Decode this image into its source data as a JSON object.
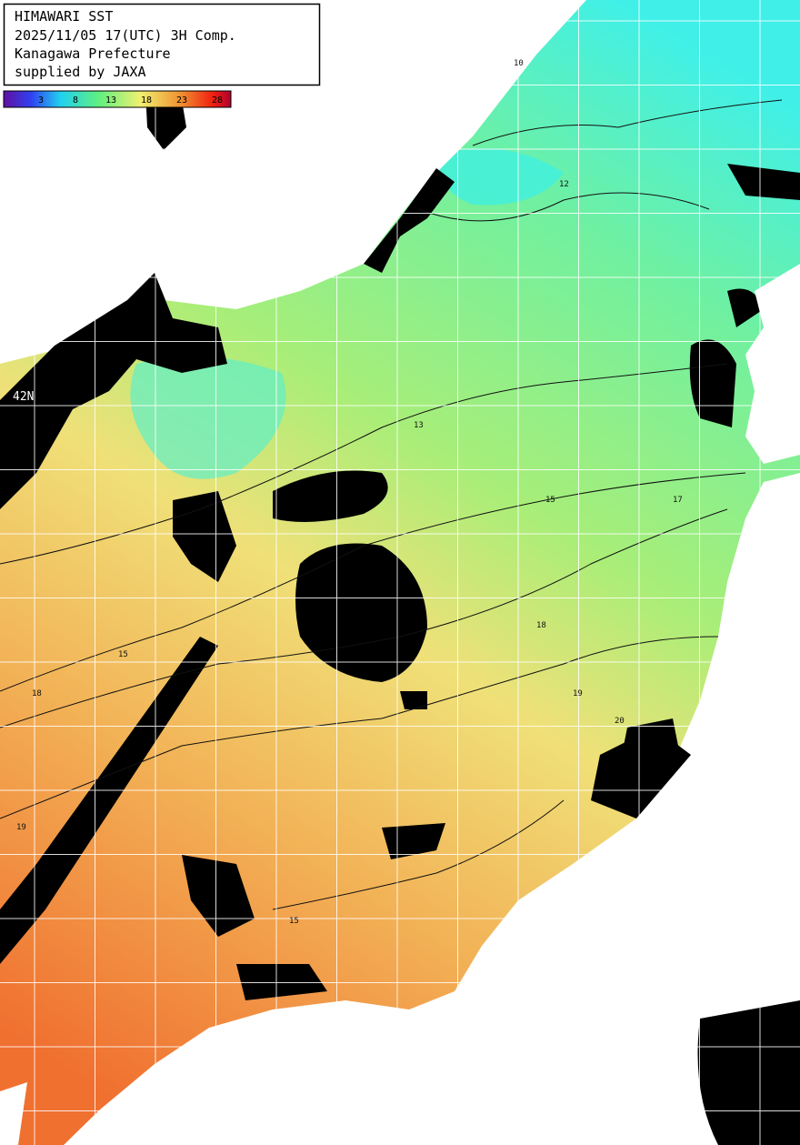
{
  "header": {
    "lines": [
      "HIMAWARI SST",
      "2025/11/05 17(UTC) 3H Comp.",
      "Kanagawa Prefecture",
      "supplied by JAXA"
    ]
  },
  "colorbar": {
    "ticks": [
      "3",
      "8",
      "13",
      "18",
      "23",
      "28"
    ]
  },
  "grid_labels": {
    "latitude": [
      "42N"
    ]
  },
  "contour_labels": [
    "10",
    "12",
    "13",
    "15",
    "15",
    "17",
    "18",
    "18",
    "19",
    "20",
    "19",
    "15"
  ]
}
